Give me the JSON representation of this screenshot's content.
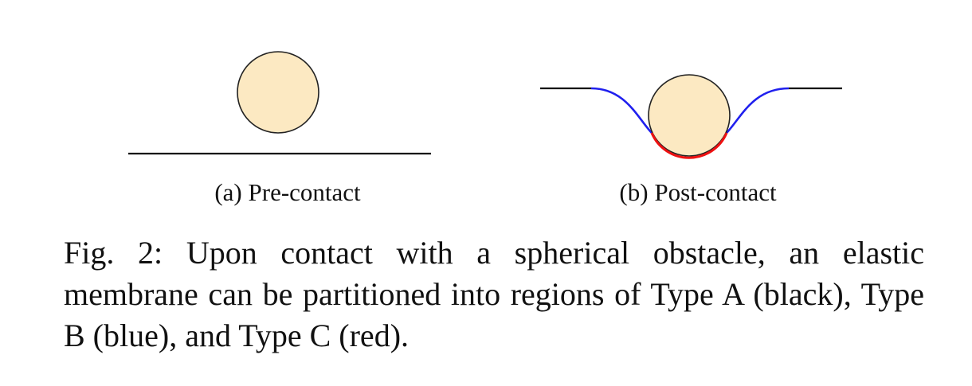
{
  "subfigures": [
    {
      "label": "(a) Pre-contact"
    },
    {
      "label": "(b) Post-contact"
    }
  ],
  "caption": {
    "prefix": "Fig. 2:",
    "text": "Upon contact with a spherical obstacle, an elastic membrane can be partitioned into regions of Type A (black), Type B (blue), and Type C (red)."
  },
  "colors": {
    "obstacle_fill": "#FCE9C2",
    "obstacle_stroke": "#222222",
    "type_a": "#111111",
    "type_b": "#2020EE",
    "type_c": "#EE1111"
  }
}
